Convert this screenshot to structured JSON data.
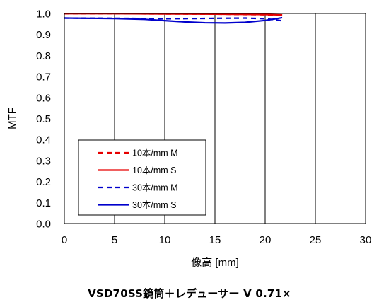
{
  "chart_data": {
    "type": "line",
    "title": "VSD70SS鏡筒＋レデューサー V 0.71×",
    "xlabel": "像高 [mm]",
    "ylabel": "MTF",
    "xlim": [
      0,
      30
    ],
    "ylim": [
      0,
      1.0
    ],
    "xticks": [
      0,
      5,
      10,
      15,
      20,
      25,
      30
    ],
    "yticks": [
      0.0,
      0.1,
      0.2,
      0.3,
      0.4,
      0.5,
      0.6,
      0.7,
      0.8,
      0.9,
      1.0
    ],
    "xtick_labels": [
      "0",
      "5",
      "10",
      "15",
      "20",
      "25",
      "30"
    ],
    "ytick_labels": [
      "0.0",
      "0.1",
      "0.2",
      "0.3",
      "0.4",
      "0.5",
      "0.6",
      "0.7",
      "0.8",
      "0.9",
      "1.0"
    ],
    "grid": "vertical",
    "legend_position": "center-left",
    "series": [
      {
        "name": "10本/mm M",
        "color": "#e60000",
        "dash": "dashed",
        "x": [
          0,
          5,
          10,
          15,
          20,
          21.7
        ],
        "y": [
          0.999,
          0.999,
          0.998,
          0.997,
          0.994,
          0.991
        ]
      },
      {
        "name": "10本/mm S",
        "color": "#e60000",
        "dash": "solid",
        "x": [
          0,
          5,
          10,
          15,
          20,
          21.7
        ],
        "y": [
          0.999,
          0.999,
          0.998,
          0.997,
          0.995,
          0.993
        ]
      },
      {
        "name": "30本/mm M",
        "color": "#0000cc",
        "dash": "dashed",
        "x": [
          0,
          5,
          8,
          10,
          13,
          15,
          18,
          20,
          21,
          21.7
        ],
        "y": [
          0.978,
          0.977,
          0.976,
          0.975,
          0.976,
          0.977,
          0.978,
          0.975,
          0.97,
          0.965
        ]
      },
      {
        "name": "30本/mm S",
        "color": "#0000cc",
        "dash": "solid",
        "x": [
          0,
          5,
          8,
          10,
          12,
          14,
          16,
          18,
          20,
          21,
          21.7
        ],
        "y": [
          0.978,
          0.976,
          0.972,
          0.966,
          0.96,
          0.956,
          0.955,
          0.958,
          0.967,
          0.974,
          0.98
        ]
      }
    ]
  }
}
